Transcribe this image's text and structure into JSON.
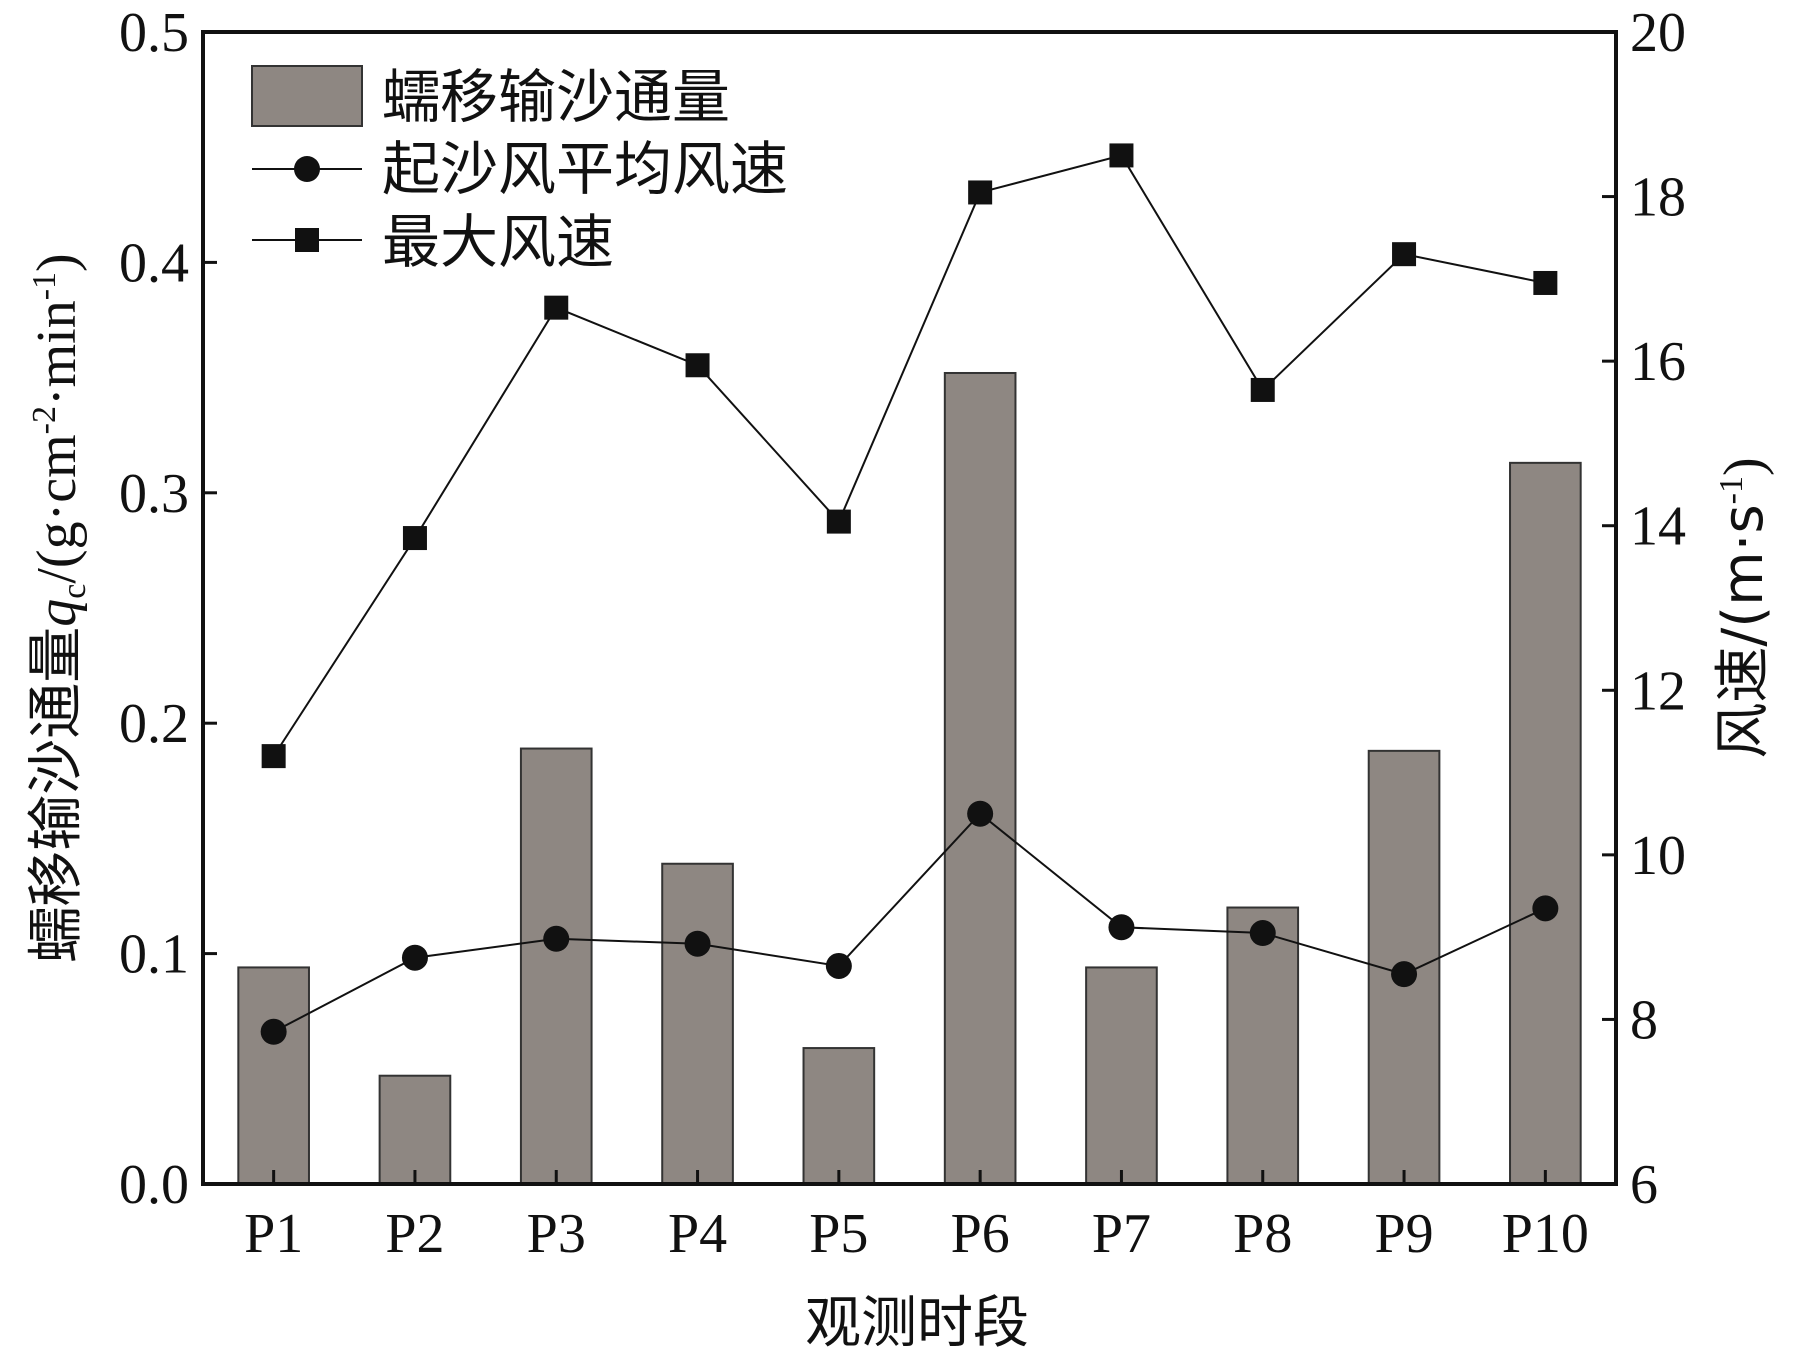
{
  "chart_data": {
    "type": "bar",
    "x_label": "观测时段",
    "categories": [
      "P1",
      "P2",
      "P3",
      "P4",
      "P5",
      "P6",
      "P7",
      "P8",
      "P9",
      "P10"
    ],
    "y_left": {
      "label_prefix": "蠕移输沙通量",
      "label_var": "q",
      "label_sub": "c",
      "label_unit": "/(g·cm",
      "label_exp1": "-2",
      "label_mid": "·min",
      "label_exp2": "-1",
      "label_end": ")",
      "range": [
        0.0,
        0.5
      ],
      "ticks": [
        "0.0",
        "0.1",
        "0.2",
        "0.3",
        "0.4",
        "0.5"
      ]
    },
    "y_right": {
      "label_prefix": "风速/(m·s",
      "label_exp": "-1",
      "label_end": ")",
      "range": [
        6,
        20
      ],
      "ticks": [
        "6",
        "8",
        "10",
        "12",
        "14",
        "16",
        "18",
        "20"
      ]
    },
    "series": [
      {
        "name": "蠕移输沙通量",
        "type": "bar",
        "axis": "left",
        "color": "#8e8782",
        "values": [
          0.094,
          0.047,
          0.189,
          0.139,
          0.059,
          0.352,
          0.094,
          0.12,
          0.188,
          0.313
        ]
      },
      {
        "name": "起沙风平均风速",
        "type": "line",
        "axis": "right",
        "marker": "circle",
        "color": "#111111",
        "values": [
          7.85,
          8.75,
          8.98,
          8.92,
          8.65,
          10.5,
          9.12,
          9.05,
          8.55,
          9.35
        ]
      },
      {
        "name": "最大风速",
        "type": "line",
        "axis": "right",
        "marker": "square",
        "color": "#111111",
        "values": [
          11.2,
          13.85,
          16.65,
          15.95,
          14.05,
          18.05,
          18.5,
          15.65,
          17.3,
          16.95
        ]
      }
    ],
    "legend_position": "top-left",
    "grid": false
  }
}
